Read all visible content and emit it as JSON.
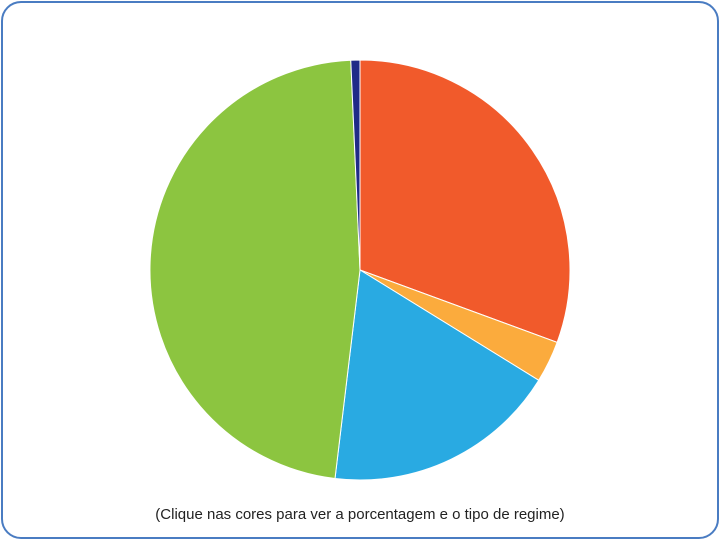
{
  "chart_data": {
    "type": "pie",
    "caption": "(Clique nas cores para ver a porcentagem e o tipo de regime)",
    "start_angle_deg": 0,
    "direction": "clockwise",
    "slices": [
      {
        "value": 30.6,
        "color": "#f15a2b"
      },
      {
        "value": 3.2,
        "color": "#fbab3d"
      },
      {
        "value": 18.1,
        "color": "#29aae2"
      },
      {
        "value": 47.4,
        "color": "#8cc540"
      },
      {
        "value": 0.7,
        "color": "#1f2b88"
      }
    ]
  }
}
